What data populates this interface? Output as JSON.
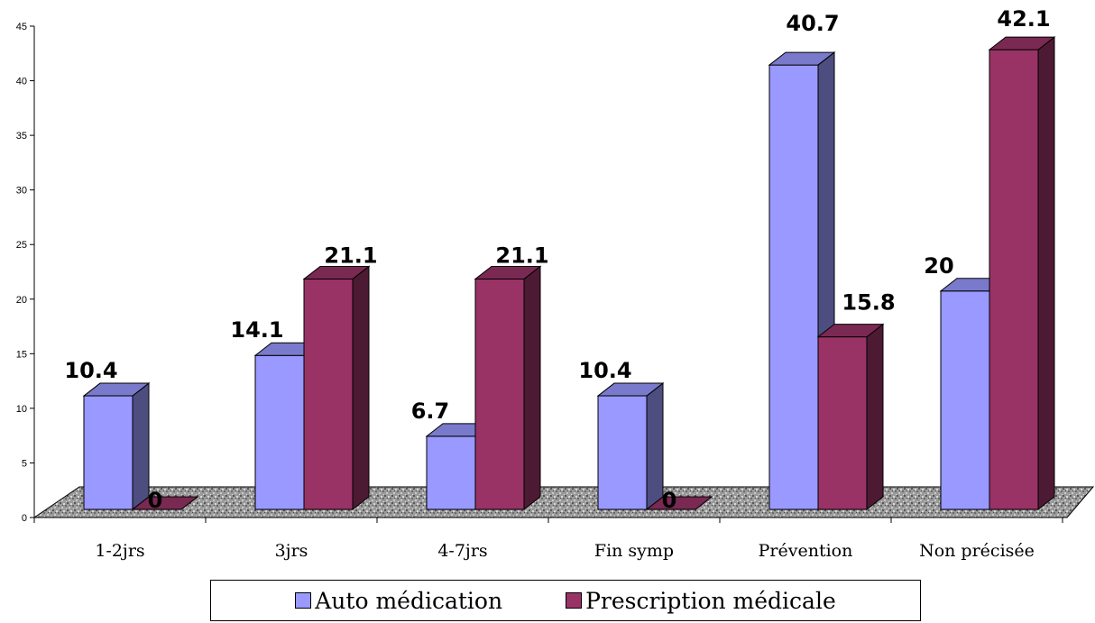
{
  "chart_data": {
    "type": "bar",
    "categories": [
      "1-2jrs",
      "3jrs",
      "4-7jrs",
      "Fin symp",
      "Prévention",
      "Non précisée"
    ],
    "series": [
      {
        "name": "Auto médication",
        "values": [
          10.4,
          14.1,
          6.7,
          10.4,
          40.7,
          20
        ],
        "labels": [
          "10.4",
          "14.1",
          "6.7",
          "10.4",
          "40.7",
          "20"
        ],
        "color": "#9999ff"
      },
      {
        "name": "Prescription médicale",
        "values": [
          0,
          21.1,
          21.1,
          0,
          15.8,
          42.1
        ],
        "labels": [
          "0",
          "21.1",
          "21.1",
          "0",
          "15.8",
          "42.1"
        ],
        "color": "#993366"
      }
    ],
    "yticks": [
      "0",
      "5",
      "10",
      "15",
      "20",
      "25",
      "30",
      "35",
      "40",
      "45"
    ],
    "ylim": [
      0,
      45
    ],
    "grid": false,
    "legend_position": "bottom",
    "floor_texture": "gray-granite"
  }
}
